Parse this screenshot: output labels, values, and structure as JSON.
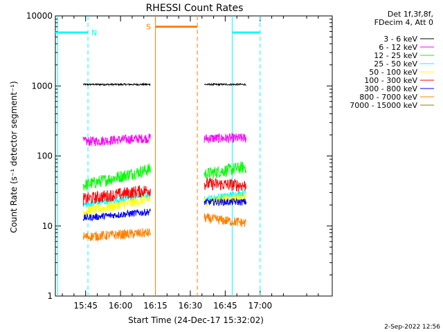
{
  "chart_data": {
    "type": "line",
    "title": "RHESSI Count Rates",
    "xlabel": "Start Time (24-Dec-17 15:32:02)",
    "ylabel": "Count Rate (s⁻¹ detector segment⁻¹)",
    "y_scale": "log",
    "ylim": [
      1,
      10000
    ],
    "y_ticks": [
      1,
      10,
      100,
      1000,
      10000
    ],
    "x_ticks": [
      "15:45",
      "16:00",
      "16:15",
      "16:30",
      "16:45",
      "17:00"
    ],
    "x_range_minutes_of_day": [
      932,
      1051
    ],
    "legend_header": [
      "Det 1f,3f,8f,",
      "FDecim 4, Att 0"
    ],
    "legend_position": "top-right, outside plot",
    "series": [
      {
        "name": "3 - 6 keV",
        "color": "#000000",
        "segments": [
          {
            "t": [
              "15:44",
              "16:13"
            ],
            "value": 1050
          },
          {
            "t": [
              "16:36",
              "16:54"
            ],
            "value": 1050
          }
        ]
      },
      {
        "name": "6 - 12 keV",
        "color": "#ff00ff",
        "segments": [
          {
            "t": [
              "15:44",
              "16:13"
            ],
            "start": 160,
            "end": 180
          },
          {
            "t": [
              "16:36",
              "16:54"
            ],
            "start": 178,
            "end": 180
          }
        ]
      },
      {
        "name": "12 - 25 keV",
        "color": "#00ff00",
        "segments": [
          {
            "t": [
              "15:44",
              "16:13"
            ],
            "start": 38,
            "end": 65
          },
          {
            "t": [
              "16:36",
              "16:54"
            ],
            "start": 55,
            "end": 70
          }
        ]
      },
      {
        "name": "25 - 50 keV",
        "color": "#00ffff",
        "segments": [
          {
            "t": [
              "15:44",
              "16:13"
            ],
            "start": 20,
            "end": 28
          },
          {
            "t": [
              "16:36",
              "16:54"
            ],
            "start": 24,
            "end": 30
          }
        ]
      },
      {
        "name": "50 - 100 keV",
        "color": "#ffff00",
        "segments": [
          {
            "t": [
              "15:44",
              "16:13"
            ],
            "start": 16,
            "end": 24
          },
          {
            "t": [
              "16:36",
              "16:54"
            ],
            "start": 22,
            "end": 26
          }
        ]
      },
      {
        "name": "100 - 300 keV",
        "color": "#ff0000",
        "segments": [
          {
            "t": [
              "15:44",
              "16:13"
            ],
            "start": 24,
            "end": 33
          },
          {
            "t": [
              "16:36",
              "16:54"
            ],
            "start": 40,
            "end": 38
          }
        ]
      },
      {
        "name": "300 - 800 keV",
        "color": "#0000ff",
        "segments": [
          {
            "t": [
              "15:44",
              "16:13"
            ],
            "start": 13,
            "end": 16
          },
          {
            "t": [
              "16:36",
              "16:54"
            ],
            "start": 22,
            "end": 22
          }
        ]
      },
      {
        "name": "800 - 7000 keV",
        "color": "#ff8000",
        "segments": [
          {
            "t": [
              "15:44",
              "16:13"
            ],
            "start": 7,
            "end": 8
          },
          {
            "t": [
              "16:36",
              "16:54"
            ],
            "start": 13,
            "end": 11
          }
        ]
      },
      {
        "name": "7000 - 15000 keV",
        "color": "#808000",
        "segments": []
      }
    ],
    "annotations": [
      {
        "label": "N",
        "color": "#00ffff",
        "kind": "night",
        "t": [
          "15:32",
          "15:46"
        ],
        "level": 5800
      },
      {
        "label": "",
        "color": "#00ffff",
        "kind": "night",
        "t": [
          "16:48",
          "17:00"
        ],
        "level": 5800
      },
      {
        "label": "S",
        "color": "#ff8000",
        "kind": "saa",
        "t": [
          "16:15",
          "16:33"
        ],
        "level": 7000
      }
    ],
    "vlines": [
      {
        "t": "15:33",
        "color": "#00ffff",
        "style": "solid"
      },
      {
        "t": "15:46",
        "color": "#00ffff",
        "style": "dashed"
      },
      {
        "t": "16:15",
        "color": "#ff8000",
        "style": "solid"
      },
      {
        "t": "16:33",
        "color": "#ff8000",
        "style": "dashed"
      },
      {
        "t": "16:48",
        "color": "#00ffff",
        "style": "solid"
      },
      {
        "t": "17:00",
        "color": "#00ffff",
        "style": "dashed"
      }
    ],
    "grid": false
  },
  "timestamp": "2-Sep-2022 12:56"
}
